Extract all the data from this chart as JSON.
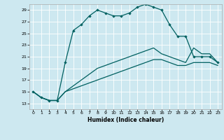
{
  "title": "",
  "xlabel": "Humidex (Indice chaleur)",
  "bg_color": "#cde8f0",
  "line_color": "#006060",
  "grid_color": "#ffffff",
  "xlim": [
    -0.5,
    23.5
  ],
  "ylim": [
    12.0,
    30.0
  ],
  "yticks": [
    13,
    15,
    17,
    19,
    21,
    23,
    25,
    27,
    29
  ],
  "xticks": [
    0,
    1,
    2,
    3,
    4,
    5,
    6,
    7,
    8,
    9,
    10,
    11,
    12,
    13,
    14,
    15,
    16,
    17,
    18,
    19,
    20,
    21,
    22,
    23
  ],
  "curve1_x": [
    0,
    1,
    2,
    3,
    4,
    5,
    6,
    7,
    8,
    9,
    10,
    11,
    12,
    13,
    14,
    15,
    16,
    17,
    18,
    19,
    20,
    21,
    22,
    23
  ],
  "curve1_y": [
    15,
    14,
    13.5,
    13.5,
    20,
    25.5,
    26.5,
    28,
    29,
    28.5,
    28,
    28,
    28.5,
    29.5,
    30,
    29.5,
    29,
    26.5,
    24.5,
    24.5,
    21,
    21,
    21,
    20
  ],
  "curve2_x": [
    0,
    1,
    2,
    3,
    4,
    5,
    6,
    7,
    8,
    9,
    10,
    11,
    12,
    13,
    14,
    15,
    16,
    17,
    18,
    19,
    20,
    21,
    22,
    23
  ],
  "curve2_y": [
    15,
    14,
    13.5,
    13.5,
    15,
    16,
    17,
    18,
    19,
    19.5,
    20,
    20.5,
    21,
    21.5,
    22,
    22.5,
    21.5,
    21,
    20.5,
    20,
    22.5,
    21.5,
    21.5,
    20
  ],
  "curve3_x": [
    0,
    1,
    2,
    3,
    4,
    5,
    6,
    7,
    8,
    9,
    10,
    11,
    12,
    13,
    14,
    15,
    16,
    17,
    18,
    19,
    20,
    21,
    22,
    23
  ],
  "curve3_y": [
    15,
    14,
    13.5,
    13.5,
    15,
    15.5,
    16,
    16.5,
    17,
    17.5,
    18,
    18.5,
    19,
    19.5,
    20,
    20.5,
    20.5,
    20,
    19.5,
    19.5,
    20,
    20,
    20,
    19.5
  ]
}
